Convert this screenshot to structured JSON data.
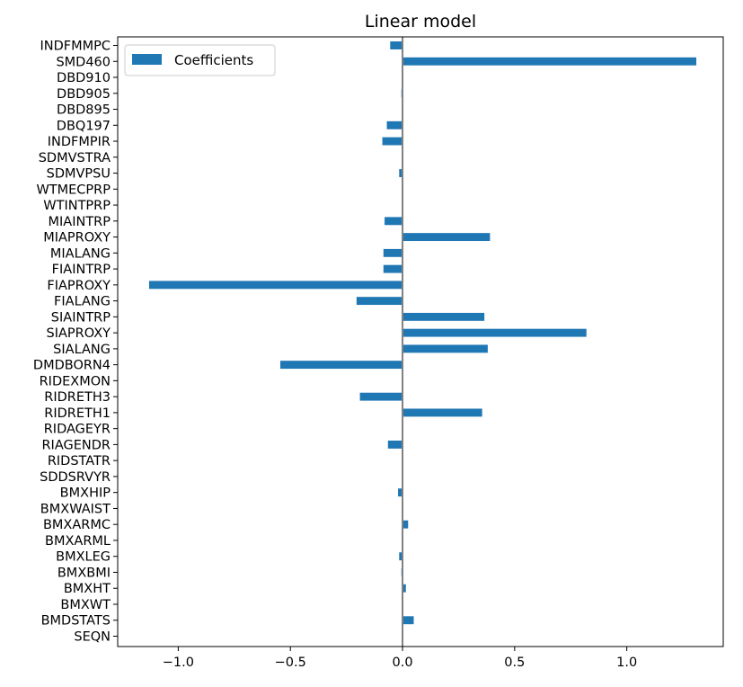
{
  "chart_data": {
    "type": "bar",
    "orientation": "horizontal",
    "title": "Linear model",
    "xlabel": "",
    "ylabel": "",
    "xlim": [
      -1.27,
      1.43
    ],
    "xticks": [
      -1.0,
      -0.5,
      0.0,
      0.5,
      1.0
    ],
    "xtick_labels": [
      "−1.0",
      "−0.5",
      "0.0",
      "0.5",
      "1.0"
    ],
    "zero_line": true,
    "grid": false,
    "legend_position": "top-left",
    "colors": {
      "bar": "#1f77b4",
      "zero_line": "#808080",
      "frame": "#000000"
    },
    "categories": [
      "SEQN",
      "BMDSTATS",
      "BMXWT",
      "BMXHT",
      "BMXBMI",
      "BMXLEG",
      "BMXARML",
      "BMXARMC",
      "BMXWAIST",
      "BMXHIP",
      "SDDSRVYR",
      "RIDSTATR",
      "RIAGENDR",
      "RIDAGEYR",
      "RIDRETH1",
      "RIDRETH3",
      "RIDEXMON",
      "DMDBORN4",
      "SIALANG",
      "SIAPROXY",
      "SIAINTRP",
      "FIALANG",
      "FIAPROXY",
      "FIAINTRP",
      "MIALANG",
      "MIAPROXY",
      "MIAINTRP",
      "WTINTPRP",
      "WTMECPRP",
      "SDMVPSU",
      "SDMVSTRA",
      "INDFMPIR",
      "DBQ197",
      "DBD895",
      "DBD905",
      "DBD910",
      "SMD460",
      "INDFMMPC"
    ],
    "series": [
      {
        "name": "Coefficients",
        "values": [
          0.0,
          0.05,
          0.0,
          0.015,
          -0.005,
          -0.015,
          0.0,
          0.025,
          0.0,
          -0.02,
          0.0,
          0.0,
          -0.065,
          0.0,
          0.355,
          -0.19,
          0.0,
          -0.545,
          0.38,
          0.82,
          0.365,
          -0.205,
          -1.13,
          -0.085,
          -0.085,
          0.39,
          -0.08,
          0.0,
          0.0,
          -0.015,
          0.0,
          -0.09,
          -0.07,
          0.0,
          -0.005,
          0.0,
          1.31,
          -0.055
        ]
      }
    ]
  }
}
